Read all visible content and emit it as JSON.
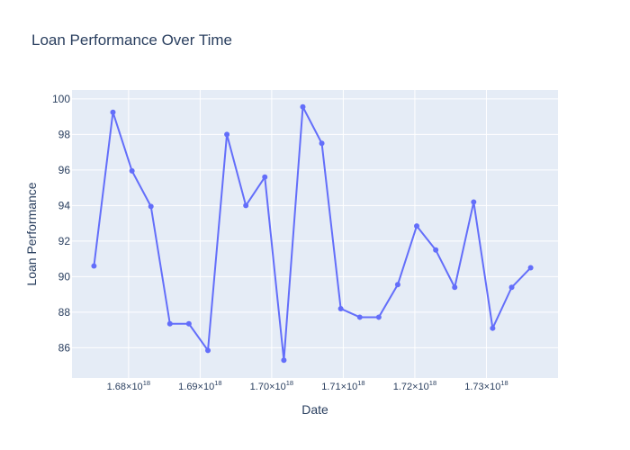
{
  "chart_data": {
    "type": "line",
    "title": "Loan Performance Over Time",
    "xlabel": "Date",
    "ylabel": "Loan Performance",
    "xlim": [
      1.6721e+18,
      1.74e+18
    ],
    "ylim": [
      84.3,
      100.5
    ],
    "x_ticks": [
      {
        "value": 1.68e+18,
        "mantissa": "1.68×10",
        "exp": "18"
      },
      {
        "value": 1.69e+18,
        "mantissa": "1.69×10",
        "exp": "18"
      },
      {
        "value": 1.7e+18,
        "mantissa": "1.70×10",
        "exp": "18"
      },
      {
        "value": 1.71e+18,
        "mantissa": "1.71×10",
        "exp": "18"
      },
      {
        "value": 1.72e+18,
        "mantissa": "1.72×10",
        "exp": "18"
      },
      {
        "value": 1.73e+18,
        "mantissa": "1.73×10",
        "exp": "18"
      }
    ],
    "y_ticks": [
      86,
      88,
      90,
      92,
      94,
      96,
      98,
      100
    ],
    "grid": true,
    "line_color": "#636efa",
    "plot_bg": "#e5ecf6",
    "series": [
      {
        "x": [
          1.67517e+18,
          1.67782e+18,
          1.68048e+18,
          1.68313e+18,
          1.68578e+18,
          1.68843e+18,
          1.69109e+18,
          1.69374e+18,
          1.69639e+18,
          1.69904e+18,
          1.7017e+18,
          1.70435e+18,
          1.707e+18,
          1.70965e+18,
          1.71231e+18,
          1.71496e+18,
          1.71761e+18,
          1.72026e+18,
          1.72292e+18,
          1.72557e+18,
          1.72822e+18,
          1.73087e+18,
          1.73353e+18,
          1.73618e+18
        ],
        "y": [
          90.6,
          99.25,
          95.95,
          93.95,
          87.35,
          87.35,
          85.85,
          98.0,
          94.0,
          95.6,
          85.3,
          99.55,
          97.5,
          88.2,
          87.72,
          87.72,
          89.55,
          92.85,
          91.5,
          89.4,
          94.2,
          87.1,
          89.4,
          90.5
        ]
      }
    ]
  }
}
